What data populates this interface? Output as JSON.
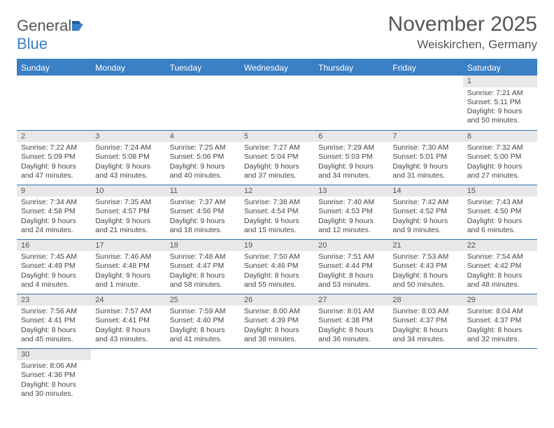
{
  "logo": {
    "text_general": "General",
    "text_blue": "Blue"
  },
  "title": "November 2025",
  "location": "Weiskirchen, Germany",
  "colors": {
    "header_bg": "#3b7fc4",
    "row_divider": "#2f6fb0",
    "daynum_bg": "#e8e8e8",
    "text": "#444444",
    "title_text": "#555555"
  },
  "weekdays": [
    "Sunday",
    "Monday",
    "Tuesday",
    "Wednesday",
    "Thursday",
    "Friday",
    "Saturday"
  ],
  "days": {
    "1": {
      "sunrise": "7:21 AM",
      "sunset": "5:11 PM",
      "daylight": "9 hours and 50 minutes."
    },
    "2": {
      "sunrise": "7:22 AM",
      "sunset": "5:09 PM",
      "daylight": "9 hours and 47 minutes."
    },
    "3": {
      "sunrise": "7:24 AM",
      "sunset": "5:08 PM",
      "daylight": "9 hours and 43 minutes."
    },
    "4": {
      "sunrise": "7:25 AM",
      "sunset": "5:06 PM",
      "daylight": "9 hours and 40 minutes."
    },
    "5": {
      "sunrise": "7:27 AM",
      "sunset": "5:04 PM",
      "daylight": "9 hours and 37 minutes."
    },
    "6": {
      "sunrise": "7:29 AM",
      "sunset": "5:03 PM",
      "daylight": "9 hours and 34 minutes."
    },
    "7": {
      "sunrise": "7:30 AM",
      "sunset": "5:01 PM",
      "daylight": "9 hours and 31 minutes."
    },
    "8": {
      "sunrise": "7:32 AM",
      "sunset": "5:00 PM",
      "daylight": "9 hours and 27 minutes."
    },
    "9": {
      "sunrise": "7:34 AM",
      "sunset": "4:58 PM",
      "daylight": "9 hours and 24 minutes."
    },
    "10": {
      "sunrise": "7:35 AM",
      "sunset": "4:57 PM",
      "daylight": "9 hours and 21 minutes."
    },
    "11": {
      "sunrise": "7:37 AM",
      "sunset": "4:56 PM",
      "daylight": "9 hours and 18 minutes."
    },
    "12": {
      "sunrise": "7:38 AM",
      "sunset": "4:54 PM",
      "daylight": "9 hours and 15 minutes."
    },
    "13": {
      "sunrise": "7:40 AM",
      "sunset": "4:53 PM",
      "daylight": "9 hours and 12 minutes."
    },
    "14": {
      "sunrise": "7:42 AM",
      "sunset": "4:52 PM",
      "daylight": "9 hours and 9 minutes."
    },
    "15": {
      "sunrise": "7:43 AM",
      "sunset": "4:50 PM",
      "daylight": "9 hours and 6 minutes."
    },
    "16": {
      "sunrise": "7:45 AM",
      "sunset": "4:49 PM",
      "daylight": "9 hours and 4 minutes."
    },
    "17": {
      "sunrise": "7:46 AM",
      "sunset": "4:48 PM",
      "daylight": "9 hours and 1 minute."
    },
    "18": {
      "sunrise": "7:48 AM",
      "sunset": "4:47 PM",
      "daylight": "8 hours and 58 minutes."
    },
    "19": {
      "sunrise": "7:50 AM",
      "sunset": "4:46 PM",
      "daylight": "8 hours and 55 minutes."
    },
    "20": {
      "sunrise": "7:51 AM",
      "sunset": "4:44 PM",
      "daylight": "8 hours and 53 minutes."
    },
    "21": {
      "sunrise": "7:53 AM",
      "sunset": "4:43 PM",
      "daylight": "8 hours and 50 minutes."
    },
    "22": {
      "sunrise": "7:54 AM",
      "sunset": "4:42 PM",
      "daylight": "8 hours and 48 minutes."
    },
    "23": {
      "sunrise": "7:56 AM",
      "sunset": "4:41 PM",
      "daylight": "8 hours and 45 minutes."
    },
    "24": {
      "sunrise": "7:57 AM",
      "sunset": "4:41 PM",
      "daylight": "8 hours and 43 minutes."
    },
    "25": {
      "sunrise": "7:59 AM",
      "sunset": "4:40 PM",
      "daylight": "8 hours and 41 minutes."
    },
    "26": {
      "sunrise": "8:00 AM",
      "sunset": "4:39 PM",
      "daylight": "8 hours and 38 minutes."
    },
    "27": {
      "sunrise": "8:01 AM",
      "sunset": "4:38 PM",
      "daylight": "8 hours and 36 minutes."
    },
    "28": {
      "sunrise": "8:03 AM",
      "sunset": "4:37 PM",
      "daylight": "8 hours and 34 minutes."
    },
    "29": {
      "sunrise": "8:04 AM",
      "sunset": "4:37 PM",
      "daylight": "8 hours and 32 minutes."
    },
    "30": {
      "sunrise": "8:06 AM",
      "sunset": "4:36 PM",
      "daylight": "8 hours and 30 minutes."
    }
  },
  "labels": {
    "sunrise": "Sunrise: ",
    "sunset": "Sunset: ",
    "daylight": "Daylight: "
  },
  "grid": [
    [
      null,
      null,
      null,
      null,
      null,
      null,
      "1"
    ],
    [
      "2",
      "3",
      "4",
      "5",
      "6",
      "7",
      "8"
    ],
    [
      "9",
      "10",
      "11",
      "12",
      "13",
      "14",
      "15"
    ],
    [
      "16",
      "17",
      "18",
      "19",
      "20",
      "21",
      "22"
    ],
    [
      "23",
      "24",
      "25",
      "26",
      "27",
      "28",
      "29"
    ],
    [
      "30",
      null,
      null,
      null,
      null,
      null,
      null
    ]
  ]
}
